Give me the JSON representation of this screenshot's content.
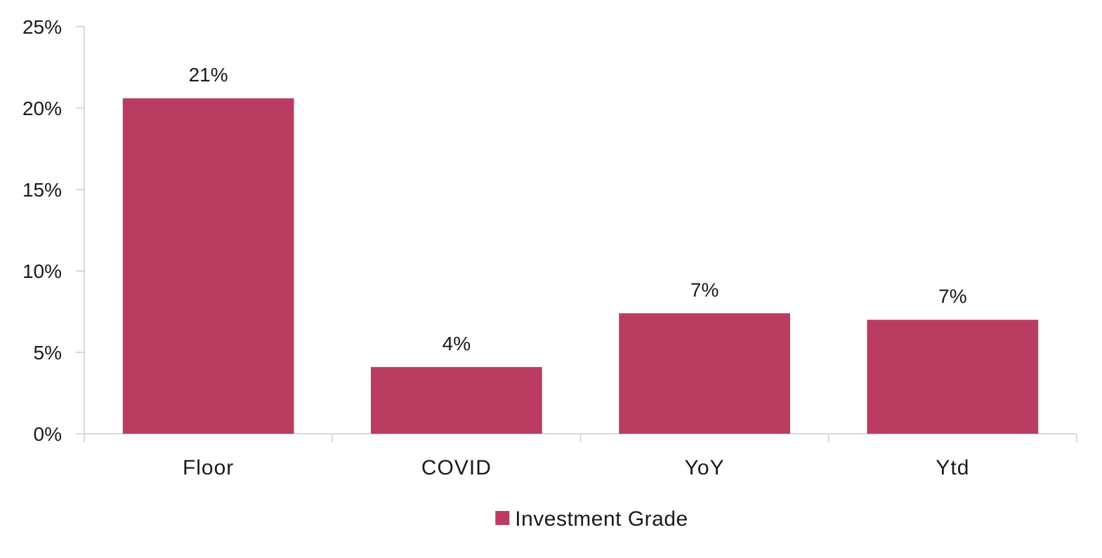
{
  "chart_data": {
    "type": "bar",
    "categories": [
      "Floor",
      "COVID",
      "YoY",
      "Ytd"
    ],
    "series": [
      {
        "name": "Investment Grade",
        "values": [
          20.6,
          4.1,
          7.4,
          7.0
        ],
        "data_labels": [
          "21%",
          "4%",
          "7%",
          "7%"
        ]
      }
    ],
    "ylim": [
      0,
      25
    ],
    "yticks": [
      0,
      5,
      10,
      15,
      20,
      25
    ],
    "ytick_labels": [
      "0%",
      "5%",
      "10%",
      "15%",
      "20%",
      "25%"
    ],
    "title": "",
    "xlabel": "",
    "ylabel": "",
    "grid": false,
    "legend_position": "bottom",
    "colors": {
      "bar": "#BA3D61",
      "axis": "#d9d9d9",
      "text": "#1a1a1a"
    }
  }
}
